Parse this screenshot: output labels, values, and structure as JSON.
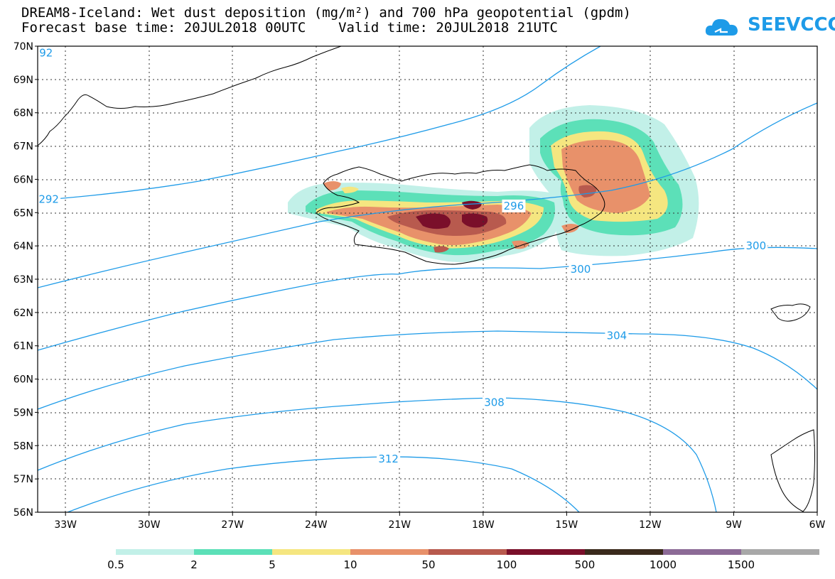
{
  "title": {
    "line1": "DREAM8-Iceland: Wet dust deposition (mg/m²) and 700 hPa geopotential (gpdm)",
    "line2": "Forecast base time: 20JUL2018 00UTC    Valid time: 20JUL2018 21UTC"
  },
  "logo": {
    "text": "SEEVCCC",
    "icon": "cloud-icon"
  },
  "map": {
    "lon_range": [
      -34,
      -6
    ],
    "lat_range": [
      56,
      70
    ],
    "lat_ticks": [
      "56N",
      "57N",
      "58N",
      "59N",
      "60N",
      "61N",
      "62N",
      "63N",
      "64N",
      "65N",
      "66N",
      "67N",
      "68N",
      "69N",
      "70N"
    ],
    "lon_ticks": [
      "33W",
      "30W",
      "27W",
      "24W",
      "21W",
      "18W",
      "15W",
      "12W",
      "9W",
      "6W"
    ],
    "contour_labels": [
      {
        "text": "92",
        "lon": -33.7,
        "lat": 69.8
      },
      {
        "text": "292",
        "lon": -33.6,
        "lat": 65.4
      },
      {
        "text": "296",
        "lon": -16.9,
        "lat": 65.2
      },
      {
        "text": "300",
        "lon": -14.5,
        "lat": 63.3
      },
      {
        "text": "300",
        "lon": -8.2,
        "lat": 64.0
      },
      {
        "text": "304",
        "lon": -13.2,
        "lat": 61.3
      },
      {
        "text": "308",
        "lon": -17.6,
        "lat": 59.3
      },
      {
        "text": "312",
        "lon": -21.4,
        "lat": 57.6
      }
    ],
    "contour_color": "#1e9be8"
  },
  "legend": {
    "colors": [
      "#c2f0e8",
      "#5ce0b8",
      "#f5e680",
      "#e8916a",
      "#b85a4e",
      "#7a0f2a",
      "#3a2a1c",
      "#8c6a96",
      "#a8a8a8"
    ],
    "labels": [
      "0.5",
      "2",
      "5",
      "10",
      "50",
      "100",
      "500",
      "1000",
      "1500"
    ]
  }
}
